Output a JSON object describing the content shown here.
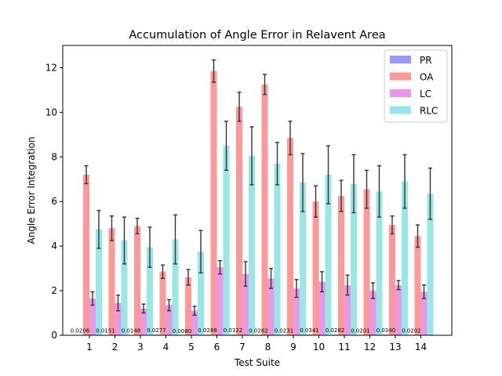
{
  "chart_data": {
    "type": "bar",
    "title": "Accumulation of Angle Error in Relavent Area",
    "xlabel": "Test Suite",
    "ylabel": "Angle Error Integration",
    "ylim": [
      0,
      13
    ],
    "yticks": [
      0,
      2,
      4,
      6,
      8,
      10,
      12
    ],
    "categories": [
      "1",
      "2",
      "3",
      "4",
      "5",
      "6",
      "7",
      "8",
      "9",
      "10",
      "11",
      "12",
      "13",
      "14"
    ],
    "legend_position": "top-right",
    "grid": false,
    "series": [
      {
        "name": "PR",
        "color": "#9999ff",
        "values": [
          0.0206,
          0.0151,
          0.0148,
          0.0277,
          0.008,
          0.0288,
          0.0322,
          0.0262,
          0.0231,
          0.0341,
          0.0282,
          0.0201,
          0.034,
          0.0202
        ],
        "errors": [
          0,
          0,
          0,
          0,
          0,
          0,
          0,
          0,
          0,
          0,
          0,
          0,
          0,
          0
        ],
        "data_labels": [
          "0.0206",
          "0.0151",
          "0.0148",
          "0.0277",
          "0.0080",
          "0.0288",
          "0.0322",
          "0.0262",
          "0.0231",
          "0.0341",
          "0.0282",
          "0.0201",
          "0.0340",
          "0.0202"
        ]
      },
      {
        "name": "OA",
        "color": "#ff9999",
        "values": [
          7.2,
          4.8,
          4.9,
          2.85,
          2.6,
          11.85,
          10.25,
          11.25,
          8.85,
          6.0,
          6.25,
          6.55,
          4.95,
          4.45
        ],
        "errors": [
          0.4,
          0.55,
          0.35,
          0.3,
          0.35,
          0.5,
          0.65,
          0.45,
          0.75,
          0.7,
          0.7,
          0.85,
          0.4,
          0.5
        ]
      },
      {
        "name": "LC",
        "color": "#e699e6",
        "values": [
          1.65,
          1.45,
          1.2,
          1.35,
          1.1,
          3.05,
          2.75,
          2.55,
          2.1,
          2.4,
          2.25,
          2.0,
          2.25,
          1.95
        ],
        "errors": [
          0.3,
          0.35,
          0.2,
          0.25,
          0.2,
          0.3,
          0.55,
          0.45,
          0.4,
          0.45,
          0.45,
          0.35,
          0.2,
          0.3
        ]
      },
      {
        "name": "RLC",
        "color": "#99e6e6",
        "values": [
          4.75,
          4.25,
          3.95,
          4.3,
          3.75,
          8.5,
          8.05,
          7.7,
          6.85,
          7.2,
          6.8,
          6.45,
          6.9,
          6.35
        ],
        "errors": [
          0.85,
          1.05,
          0.9,
          1.1,
          0.95,
          1.1,
          1.3,
          0.95,
          1.3,
          1.3,
          1.3,
          1.15,
          1.2,
          1.15
        ]
      }
    ]
  }
}
